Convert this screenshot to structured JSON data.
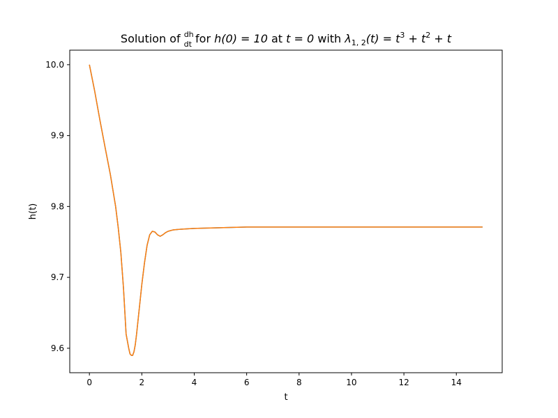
{
  "chart_data": {
    "type": "line",
    "title_parts": {
      "pre": "Solution of ",
      "frac_num": "dh",
      "frac_den": "dt",
      "mid1": " for ",
      "h0": "h(0) = 10",
      "mid2": " at ",
      "t0": "t = 0",
      "mid3": " with ",
      "lambda": "λ",
      "lambda_sub": "1, 2",
      "lambda_arg": "(t) = t",
      "exp1": "3",
      "plus1": " + t",
      "exp2": "2",
      "plus2": " + t"
    },
    "xlabel": "t",
    "ylabel": "h(t)",
    "xlim": [
      -0.75,
      15.75
    ],
    "ylim": [
      9.5655,
      10.0205
    ],
    "x_ticks": [
      0,
      2,
      4,
      6,
      8,
      10,
      12,
      14
    ],
    "x_tick_labels": [
      "0",
      "2",
      "4",
      "6",
      "8",
      "10",
      "12",
      "14"
    ],
    "y_ticks": [
      9.6,
      9.7,
      9.8,
      9.9,
      10.0
    ],
    "y_tick_labels": [
      "9.6",
      "9.7",
      "9.8",
      "9.9",
      "10.0"
    ],
    "grid": false,
    "colors": {
      "series1": "#1f77b4",
      "series2": "#ff7f0e"
    },
    "series": [
      {
        "x": [
          0,
          0.2,
          0.4,
          0.6,
          0.8,
          1.0,
          1.1,
          1.2,
          1.3,
          1.4,
          1.5,
          1.55,
          1.6,
          1.65,
          1.7,
          1.75,
          1.8,
          1.9,
          2.0,
          2.1,
          2.2,
          2.3,
          2.4,
          2.5,
          2.6,
          2.7,
          2.8,
          2.9,
          3.0,
          3.2,
          3.5,
          4.0,
          5.0,
          6.0,
          8.0,
          10.0,
          12.0,
          15.0
        ],
        "y": [
          10.0,
          9.963,
          9.922,
          9.883,
          9.845,
          9.8,
          9.77,
          9.735,
          9.685,
          9.62,
          9.6,
          9.592,
          9.59,
          9.59,
          9.595,
          9.605,
          9.62,
          9.655,
          9.69,
          9.72,
          9.745,
          9.76,
          9.765,
          9.764,
          9.76,
          9.758,
          9.76,
          9.763,
          9.765,
          9.767,
          9.768,
          9.769,
          9.77,
          9.771,
          9.771,
          9.771,
          9.771,
          9.771
        ]
      },
      {
        "x": [
          0,
          0.2,
          0.4,
          0.6,
          0.8,
          1.0,
          1.1,
          1.2,
          1.3,
          1.4,
          1.5,
          1.55,
          1.6,
          1.65,
          1.7,
          1.75,
          1.8,
          1.9,
          2.0,
          2.1,
          2.2,
          2.3,
          2.4,
          2.5,
          2.6,
          2.7,
          2.8,
          2.9,
          3.0,
          3.2,
          3.5,
          4.0,
          5.0,
          6.0,
          8.0,
          10.0,
          12.0,
          15.0
        ],
        "y": [
          10.0,
          9.963,
          9.922,
          9.883,
          9.845,
          9.8,
          9.77,
          9.735,
          9.685,
          9.62,
          9.6,
          9.592,
          9.59,
          9.59,
          9.595,
          9.605,
          9.62,
          9.655,
          9.69,
          9.72,
          9.745,
          9.76,
          9.765,
          9.764,
          9.76,
          9.758,
          9.76,
          9.763,
          9.765,
          9.767,
          9.768,
          9.769,
          9.77,
          9.771,
          9.771,
          9.771,
          9.771,
          9.771
        ]
      }
    ]
  }
}
